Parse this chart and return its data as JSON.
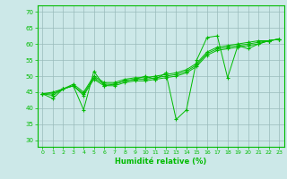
{
  "xlabel": "Humidité relative (%)",
  "bg_color": "#cce8e8",
  "grid_color": "#99bbbb",
  "line_color": "#00bb00",
  "xlim": [
    -0.5,
    23.5
  ],
  "ylim": [
    28,
    72
  ],
  "yticks": [
    30,
    35,
    40,
    45,
    50,
    55,
    60,
    65,
    70
  ],
  "xticks": [
    0,
    1,
    2,
    3,
    4,
    5,
    6,
    7,
    8,
    9,
    10,
    11,
    12,
    13,
    14,
    15,
    16,
    17,
    18,
    19,
    20,
    21,
    22,
    23
  ],
  "series": [
    [
      44.5,
      43,
      46,
      47,
      39.5,
      51.5,
      47,
      47.5,
      48.5,
      49,
      50,
      49,
      51,
      36.5,
      39.5,
      55,
      62,
      62.5,
      49.5,
      59.5,
      58.5,
      60,
      61,
      61.5
    ],
    [
      44.5,
      44,
      46,
      47,
      44,
      49,
      47,
      47,
      48,
      48.5,
      48.5,
      49,
      49.5,
      50,
      51,
      53,
      56.5,
      58,
      58.5,
      59,
      59.5,
      60,
      61,
      61.5
    ],
    [
      44.5,
      44.5,
      46,
      47,
      44.5,
      49.5,
      47.5,
      47.5,
      48.5,
      49,
      49,
      49.5,
      50,
      50.5,
      51.5,
      53.5,
      57,
      58.5,
      59,
      59.5,
      60,
      60.5,
      61,
      61.5
    ],
    [
      44.5,
      45,
      46,
      47.5,
      45,
      50,
      48,
      48,
      49,
      49.5,
      49.5,
      50,
      50.5,
      51,
      52,
      54,
      57.5,
      59,
      59.5,
      60,
      60.5,
      61,
      61,
      61.5
    ]
  ]
}
